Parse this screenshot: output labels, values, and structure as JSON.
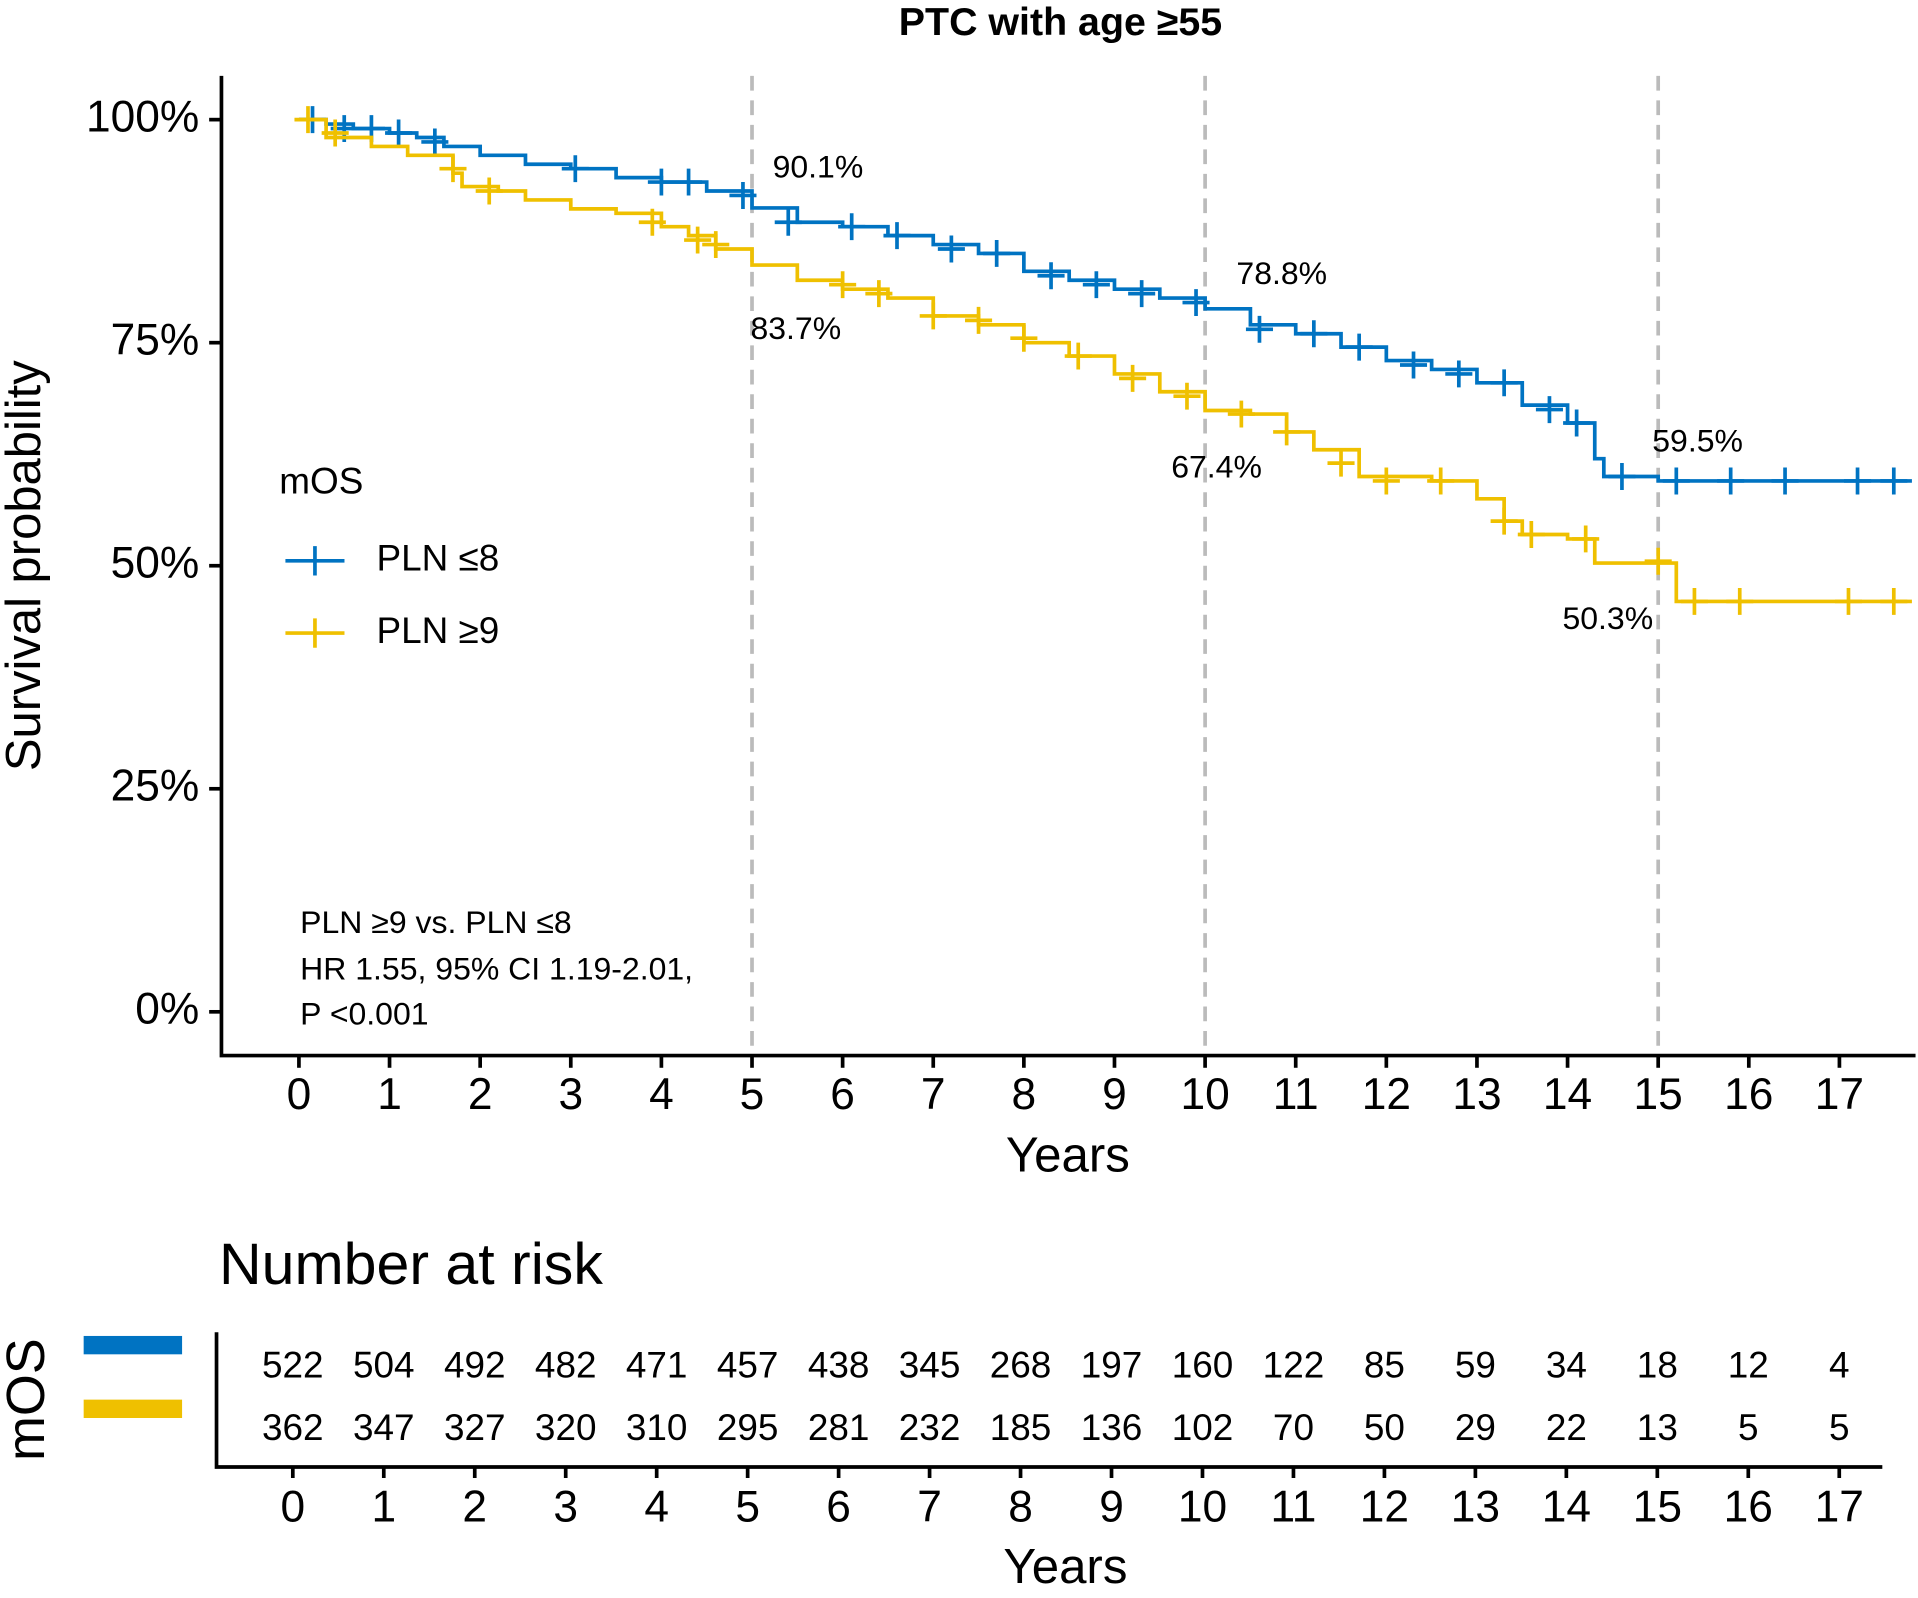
{
  "chart_data": {
    "type": "km",
    "title": "PTC with age ≥55",
    "xlabel": "Years",
    "ylabel": "Survival probability",
    "xlim": [
      -0.855,
      17.84
    ],
    "ylim": [
      -4.9,
      104.9
    ],
    "xticks": [
      0,
      1,
      2,
      3,
      4,
      5,
      6,
      7,
      8,
      9,
      10,
      11,
      12,
      13,
      14,
      15,
      16,
      17
    ],
    "yticks": [
      {
        "value": 0,
        "label": "0%"
      },
      {
        "value": 25,
        "label": "25%"
      },
      {
        "value": 50,
        "label": "50%"
      },
      {
        "value": 75,
        "label": "75%"
      },
      {
        "value": 100,
        "label": "100%"
      }
    ],
    "vlines": [
      5,
      10,
      15
    ],
    "legend_title": "mOS",
    "series": [
      {
        "name": "PLN ≤8",
        "color": "#0073C2",
        "x": [
          0,
          0.3,
          0.6,
          1,
          1.3,
          1.6,
          2,
          2.5,
          3,
          3.5,
          4,
          4.5,
          5,
          5.5,
          6,
          6.5,
          7,
          7.5,
          8,
          8.5,
          9,
          9.5,
          10,
          10.5,
          11,
          11.5,
          12,
          12.5,
          13,
          13.5,
          14,
          14.3,
          14.4,
          15,
          17.8
        ],
        "values": [
          100,
          99.5,
          99,
          98.5,
          98,
          97,
          96,
          95,
          94.5,
          93.5,
          93,
          92,
          90.1,
          88.5,
          88,
          87,
          86,
          85,
          83,
          82,
          81,
          80,
          78.8,
          77,
          76,
          74.5,
          73,
          72,
          70.5,
          68,
          66,
          62,
          60,
          59.5,
          59.5
        ],
        "censor_x": [
          0.15,
          0.5,
          0.8,
          1.1,
          1.5,
          3.05,
          4,
          4.3,
          4.9,
          5.4,
          6.1,
          6.6,
          7.2,
          7.7,
          8.3,
          8.8,
          9.3,
          9.9,
          10.6,
          11.2,
          11.7,
          12.3,
          12.8,
          13.3,
          13.8,
          14.1,
          14.6,
          15.2,
          15.8,
          16.4,
          17.2,
          17.6
        ],
        "censor_y": [
          100,
          99,
          99,
          98.5,
          97.5,
          94.5,
          93,
          93,
          91.5,
          88.5,
          88,
          87,
          85.5,
          85,
          82.5,
          81.5,
          80.5,
          79.5,
          76.5,
          76,
          74.5,
          72.5,
          71.5,
          70.5,
          67.5,
          66,
          60,
          59.5,
          59.5,
          59.5,
          59.5,
          59.5
        ]
      },
      {
        "name": "PLN ≥9",
        "color": "#EFC000",
        "x": [
          0,
          0.3,
          0.8,
          1.2,
          1.7,
          1.8,
          2.2,
          2.5,
          3,
          3.5,
          4,
          4.3,
          4.6,
          5,
          5.5,
          6,
          6.5,
          7,
          7.5,
          8,
          8.5,
          9,
          9.5,
          10,
          10.5,
          10.9,
          11.2,
          11.7,
          12.5,
          13,
          13.3,
          13.5,
          14,
          14.3,
          15.2,
          17.8
        ],
        "values": [
          100,
          98,
          97,
          96,
          94,
          92.5,
          92,
          91,
          90,
          89.5,
          88,
          87,
          85.5,
          83.7,
          82,
          81,
          80,
          78,
          77,
          75,
          73.5,
          71.5,
          69.5,
          67.4,
          67,
          65,
          63,
          60,
          59.5,
          57.5,
          55,
          53.5,
          53,
          50.3,
          46,
          46
        ],
        "censor_x": [
          0.1,
          0.4,
          1.7,
          2.1,
          3.9,
          4.4,
          4.6,
          6,
          6.4,
          7,
          7.5,
          8,
          8.6,
          9.2,
          9.8,
          10.4,
          10.9,
          11.5,
          12,
          12.6,
          13.3,
          13.6,
          14.2,
          15,
          15.4,
          15.9,
          17.1,
          17.6
        ],
        "censor_y": [
          100,
          98.5,
          94.5,
          92,
          88.5,
          86.5,
          86,
          81.5,
          80.5,
          78,
          77.5,
          75.5,
          73.5,
          71,
          69,
          67,
          65,
          61.5,
          59.5,
          59.5,
          55,
          53.5,
          53,
          50.5,
          46,
          46,
          46,
          46
        ]
      }
    ],
    "annotations": [
      "90.1%",
      "83.7%",
      "78.8%",
      "67.4%",
      "59.5%",
      "50.3%"
    ],
    "note_lines": [
      "PLN ≥9 vs. PLN ≤8",
      "HR 1.55, 95% CI 1.19-2.01,",
      "P <0.001"
    ]
  },
  "risk_table": {
    "title": "Number at risk",
    "ylabel": "mOS",
    "xlabel": "Years",
    "times": [
      0,
      1,
      2,
      3,
      4,
      5,
      6,
      7,
      8,
      9,
      10,
      11,
      12,
      13,
      14,
      15,
      16,
      17
    ],
    "rows": [
      [
        522,
        504,
        492,
        482,
        471,
        457,
        438,
        345,
        268,
        197,
        160,
        122,
        85,
        59,
        34,
        18,
        12,
        4
      ],
      [
        362,
        347,
        327,
        320,
        310,
        295,
        281,
        232,
        185,
        136,
        102,
        70,
        50,
        29,
        22,
        13,
        5,
        5
      ]
    ]
  }
}
